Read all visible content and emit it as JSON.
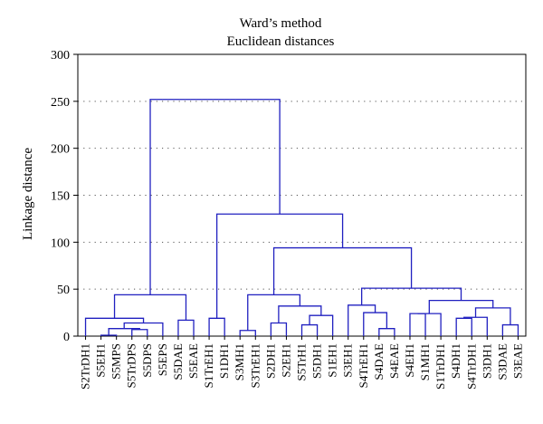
{
  "chart_data": {
    "type": "dendrogram",
    "title": "Ward’s method",
    "subtitle": "Euclidean distances",
    "ylabel": "Linkage distance",
    "xlabel": "",
    "ylim": [
      0,
      300
    ],
    "yticks": [
      0,
      50,
      100,
      150,
      200,
      250,
      300
    ],
    "grid": "dotted-horizontal",
    "line_color": "#2020c0",
    "leaves": [
      "S2TrDH1",
      "S5EH1",
      "S5MPS",
      "S5TrDPS",
      "S5DPS",
      "S5EPS",
      "S5DAE",
      "S5EAE",
      "S1TrEH1",
      "S1DH1",
      "S3MH1",
      "S3TrEH1",
      "S2DH1",
      "S2EH1",
      "S5TrH1",
      "S5DH1",
      "S1EH1",
      "S3EH1",
      "S4TrEH1",
      "S4DAE",
      "S4EAE",
      "S4EH1",
      "S1MH1",
      "S1TrDH1",
      "S4DH1",
      "S4TrDH1",
      "S3DH1",
      "S3DAE",
      "S3EAE"
    ],
    "merges": [
      {
        "a": "L1",
        "b": "L2",
        "h": 1
      },
      {
        "a": "L3",
        "b": "L4",
        "h": 7
      },
      {
        "a": "N0",
        "b": "N1",
        "h": 8
      },
      {
        "a": "N2",
        "b": "L5",
        "h": 14
      },
      {
        "a": "L0",
        "b": "N3",
        "h": 19
      },
      {
        "a": "L6",
        "b": "L7",
        "h": 17
      },
      {
        "a": "N4",
        "b": "N5",
        "h": 44
      },
      {
        "a": "L8",
        "b": "L9",
        "h": 19
      },
      {
        "a": "L10",
        "b": "L11",
        "h": 6
      },
      {
        "a": "L12",
        "b": "L13",
        "h": 14
      },
      {
        "a": "L14",
        "b": "L15",
        "h": 12
      },
      {
        "a": "N10",
        "b": "L16",
        "h": 22
      },
      {
        "a": "N9",
        "b": "N11",
        "h": 32
      },
      {
        "a": "N8",
        "b": "N12",
        "h": 44
      },
      {
        "a": "L19",
        "b": "L20",
        "h": 8
      },
      {
        "a": "N14",
        "b": "L18",
        "h": 25
      },
      {
        "a": "L17",
        "b": "N15",
        "h": 33
      },
      {
        "a": "L21",
        "b": "L22",
        "h": 24
      },
      {
        "a": "N17",
        "b": "L23",
        "h": 24
      },
      {
        "a": "L24",
        "b": "L25",
        "h": 19
      },
      {
        "a": "N19",
        "b": "L26",
        "h": 20
      },
      {
        "a": "L27",
        "b": "L28",
        "h": 12
      },
      {
        "a": "N20",
        "b": "N21",
        "h": 30
      },
      {
        "a": "N18",
        "b": "N22",
        "h": 38
      },
      {
        "a": "N16",
        "b": "N23",
        "h": 51
      },
      {
        "a": "N13",
        "b": "N24",
        "h": 94
      },
      {
        "a": "N7",
        "b": "N25",
        "h": 130
      },
      {
        "a": "N6",
        "b": "N26",
        "h": 252
      }
    ]
  }
}
